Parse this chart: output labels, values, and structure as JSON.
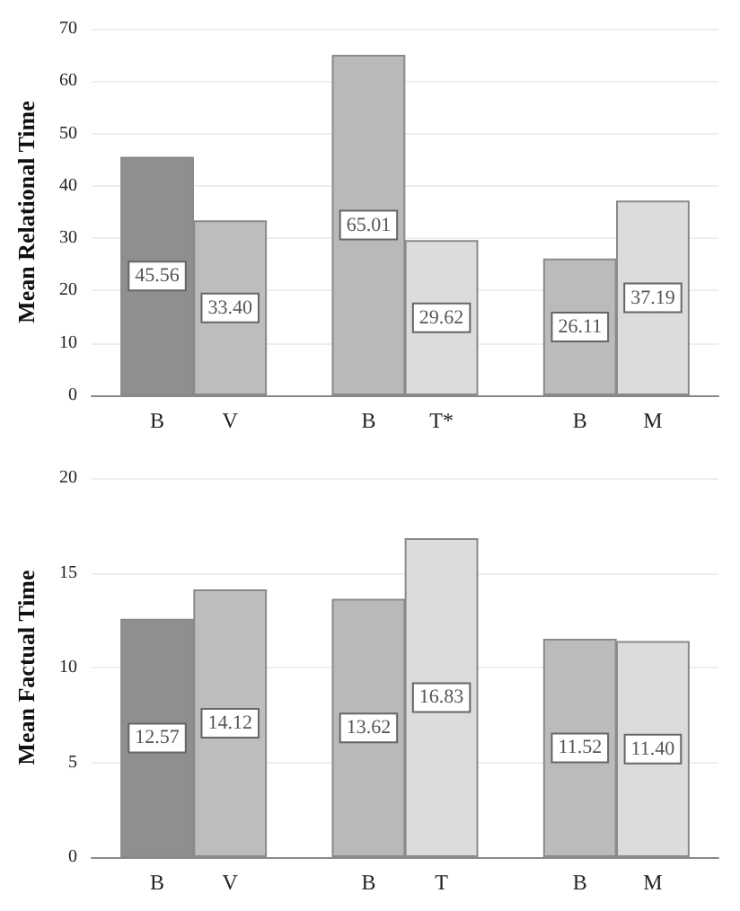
{
  "chart_data": [
    {
      "type": "bar",
      "ylabel": "Mean Relational Time",
      "categories": [
        "B",
        "V",
        "B",
        "T*",
        "B",
        "M"
      ],
      "values": [
        45.56,
        33.4,
        65.01,
        29.62,
        26.11,
        37.19
      ],
      "value_labels": [
        "45.56",
        "33.40",
        "65.01",
        "29.62",
        "26.11",
        "37.19"
      ],
      "colors": [
        "#8f8f8f",
        "#bdbdbd",
        "#b9b9b9",
        "#dcdcdc",
        "#bbbbbb",
        "#dcdcdc"
      ],
      "ylim": [
        0,
        70
      ],
      "yticks": [
        0,
        10,
        20,
        30,
        40,
        50,
        60,
        70
      ],
      "grid": "y"
    },
    {
      "type": "bar",
      "ylabel": "Mean Factual Time",
      "categories": [
        "B",
        "V",
        "B",
        "T",
        "B",
        "M"
      ],
      "values": [
        12.57,
        14.12,
        13.62,
        16.83,
        11.52,
        11.4
      ],
      "value_labels": [
        "12.57",
        "14.12",
        "13.62",
        "16.83",
        "11.52",
        "11.40"
      ],
      "colors": [
        "#8f8f8f",
        "#bdbdbd",
        "#b9b9b9",
        "#dcdcdc",
        "#bbbbbb",
        "#dcdcdc"
      ],
      "ylim": [
        0,
        20
      ],
      "yticks": [
        0,
        5,
        10,
        15,
        20
      ],
      "grid": "y"
    }
  ]
}
